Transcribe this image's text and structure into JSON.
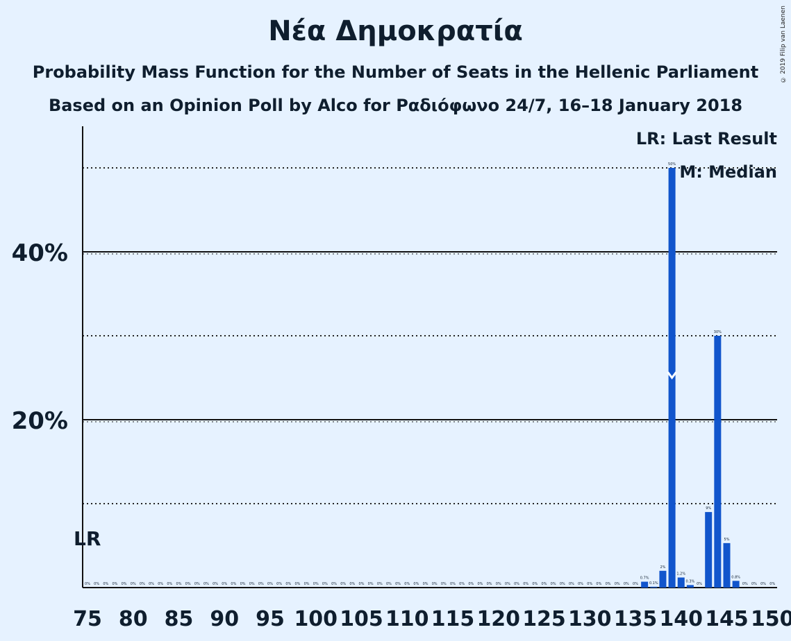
{
  "header": {
    "title": "Νέα Δημοκρατία",
    "subtitle1": "Probability Mass Function for the Number of Seats in the Hellenic Parliament",
    "subtitle2": "Based on an Opinion Poll by Alco for Ραδιόφωνο 24/7, 16–18 January 2018",
    "copyright": "© 2019 Filip van Laenen"
  },
  "legend": {
    "last_result": "LR: Last Result",
    "median": "M: Median"
  },
  "markers": {
    "last_result_label": "LR",
    "last_result_seat": 75,
    "median_seat": 139
  },
  "colors": {
    "background": "#e6f2ff",
    "bar": "#1155cc",
    "text": "#0f1e2e"
  },
  "chart_data": {
    "type": "bar",
    "title": "Νέα Δημοκρατία",
    "xlabel": "",
    "ylabel": "",
    "xlim": [
      75,
      150
    ],
    "ylim": [
      0,
      0.55
    ],
    "y_ticks": [
      {
        "value": 0.2,
        "label": "20%"
      },
      {
        "value": 0.4,
        "label": "40%"
      }
    ],
    "y_minor_gridlines": [
      0.1,
      0.3,
      0.5
    ],
    "x_ticks": [
      75,
      80,
      85,
      90,
      95,
      100,
      105,
      110,
      115,
      120,
      125,
      130,
      135,
      140,
      145,
      150
    ],
    "seats": [
      75,
      76,
      77,
      78,
      79,
      80,
      81,
      82,
      83,
      84,
      85,
      86,
      87,
      88,
      89,
      90,
      91,
      92,
      93,
      94,
      95,
      96,
      97,
      98,
      99,
      100,
      101,
      102,
      103,
      104,
      105,
      106,
      107,
      108,
      109,
      110,
      111,
      112,
      113,
      114,
      115,
      116,
      117,
      118,
      119,
      120,
      121,
      122,
      123,
      124,
      125,
      126,
      127,
      128,
      129,
      130,
      131,
      132,
      133,
      134,
      135,
      136,
      137,
      138,
      139,
      140,
      141,
      142,
      143,
      144,
      145,
      146,
      147,
      148,
      149,
      150
    ],
    "values": [
      0,
      0,
      0,
      0,
      0,
      0,
      0,
      0,
      0,
      0,
      0,
      0,
      0,
      0,
      0,
      0,
      0,
      0,
      0,
      0,
      0,
      0,
      0,
      0,
      0,
      0,
      0,
      0,
      0,
      0,
      0,
      0,
      0,
      0,
      0,
      0,
      0,
      0,
      0,
      0,
      0,
      0,
      0,
      0,
      0,
      0,
      0,
      0,
      0,
      0,
      0,
      0,
      0,
      0,
      0,
      0,
      0,
      0,
      0,
      0,
      0,
      0.007,
      0.001,
      0.02,
      0.5,
      0.012,
      0.003,
      0,
      0.09,
      0.3,
      0.053,
      0.008,
      0,
      0,
      0,
      0
    ],
    "data_labels": [
      "0%",
      "0%",
      "0%",
      "0%",
      "0%",
      "0%",
      "0%",
      "0%",
      "0%",
      "0%",
      "0%",
      "0%",
      "0%",
      "0%",
      "0%",
      "0%",
      "0%",
      "0%",
      "0%",
      "0%",
      "0%",
      "0%",
      "0%",
      "0%",
      "0%",
      "0%",
      "0%",
      "0%",
      "0%",
      "0%",
      "0%",
      "0%",
      "0%",
      "0%",
      "0%",
      "0%",
      "0%",
      "0%",
      "0%",
      "0%",
      "0%",
      "0%",
      "0%",
      "0%",
      "0%",
      "0%",
      "0%",
      "0%",
      "0%",
      "0%",
      "0%",
      "0%",
      "0%",
      "0%",
      "0%",
      "0%",
      "0%",
      "0%",
      "0%",
      "0%",
      "0%",
      "0.7%",
      "0.1%",
      "2%",
      "50%",
      "1.2%",
      "0.3%",
      "0%",
      "9%",
      "30%",
      "5%",
      "0.8%",
      "0%",
      "0%",
      "0%",
      "0%"
    ]
  }
}
